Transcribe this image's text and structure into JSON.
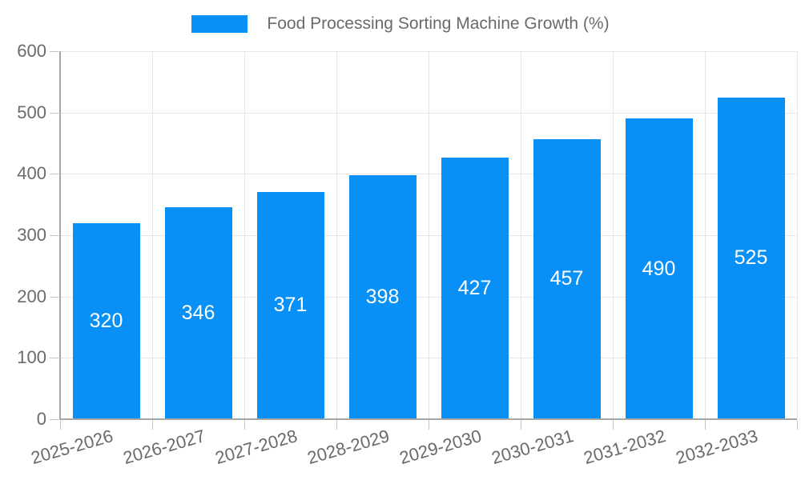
{
  "legend": {
    "label": "Food Processing Sorting Machine Growth (%)"
  },
  "colors": {
    "bar": "#0890f6",
    "grid": "#e6e6e6",
    "axis": "#a6a6a6",
    "tick": "#c4c4c4",
    "text": "#6a6a6a",
    "bar_label": "#ffffff"
  },
  "chart_data": {
    "type": "bar",
    "title": "Food Processing Sorting Machine Growth (%)",
    "categories": [
      "2025-2026",
      "2026-2027",
      "2027-2028",
      "2028-2029",
      "2029-2030",
      "2030-2031",
      "2031-2032",
      "2032-2033"
    ],
    "values": [
      320,
      346,
      371,
      398,
      427,
      457,
      490,
      525
    ],
    "xlabel": "",
    "ylabel": "",
    "ylim": [
      0,
      600
    ],
    "yticks": [
      0,
      100,
      200,
      300,
      400,
      500,
      600
    ],
    "grid": true,
    "legend_position": "top",
    "value_labels": "inside-center",
    "x_label_rotation_deg": -16
  }
}
